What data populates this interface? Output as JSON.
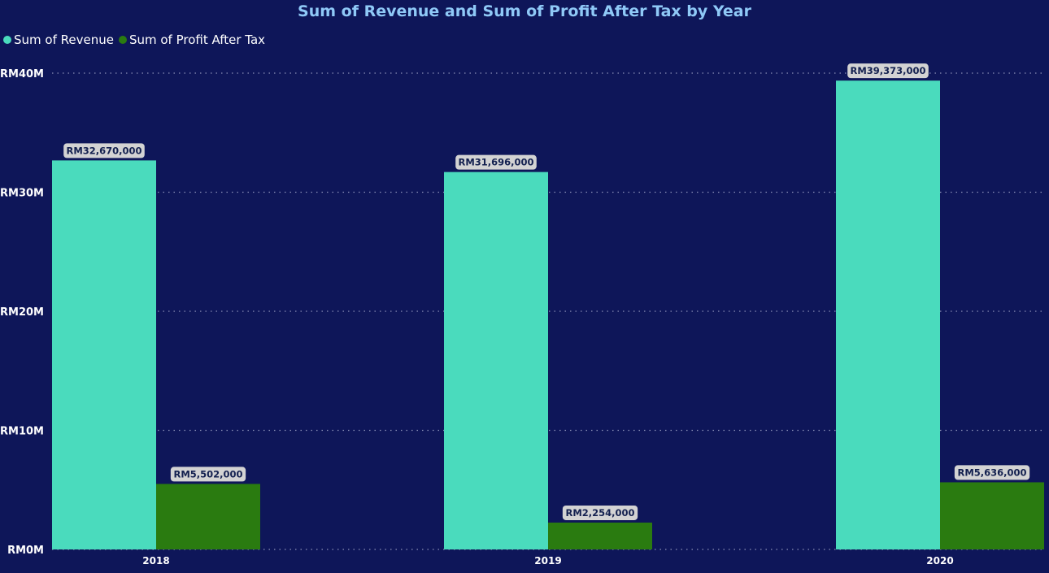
{
  "chart_data": {
    "type": "bar",
    "title": "Sum of Revenue and Sum of Profit After Tax by Year",
    "categories": [
      "2018",
      "2019",
      "2020"
    ],
    "series": [
      {
        "name": "Sum of Revenue",
        "color": "#4adbbd",
        "values": [
          32670000,
          31696000,
          39373000
        ],
        "labels": [
          "RM32,670,000",
          "RM31,696,000",
          "RM39,373,000"
        ]
      },
      {
        "name": "Sum of Profit After Tax",
        "color": "#2a7b10",
        "values": [
          5502000,
          2254000,
          5636000
        ],
        "labels": [
          "RM5,502,000",
          "RM2,254,000",
          "RM5,636,000"
        ]
      }
    ],
    "yticks": [
      0,
      10000000,
      20000000,
      30000000,
      40000000
    ],
    "ytick_labels": [
      "RM0M",
      "RM10M",
      "RM20M",
      "RM30M",
      "RM40M"
    ],
    "ylim": [
      0,
      40000000
    ],
    "xlabel": "",
    "ylabel": "",
    "grid": true,
    "legend": "top-left"
  }
}
